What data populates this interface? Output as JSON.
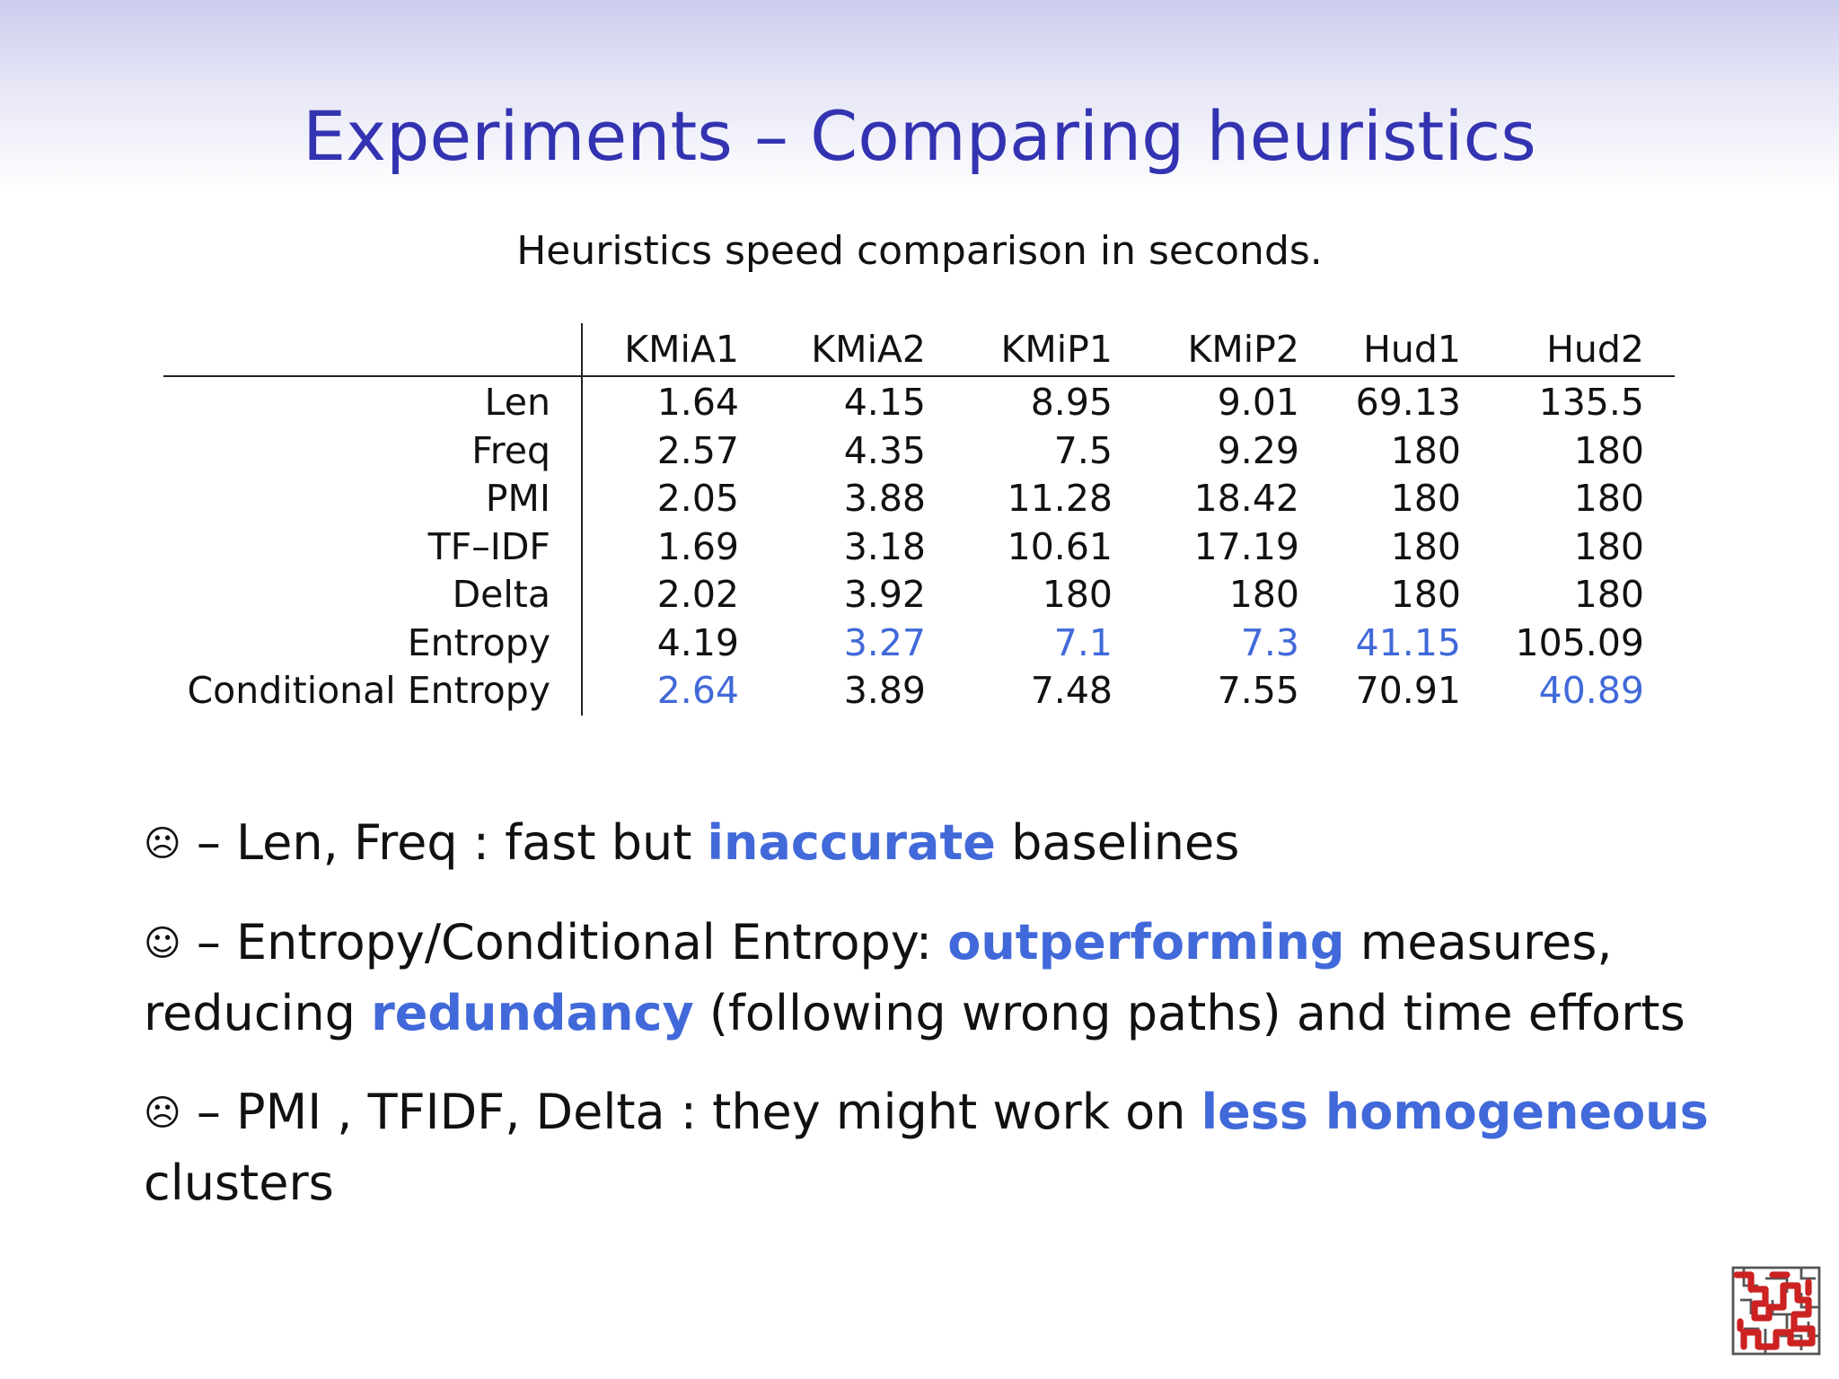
{
  "slide": {
    "title": "Experiments – Comparing heuristics",
    "caption": "Heuristics speed comparison in seconds."
  },
  "table": {
    "columns": [
      "KMiA1",
      "KMiA2",
      "KMiP1",
      "KMiP2",
      "Hud1",
      "Hud2"
    ],
    "rows": [
      {
        "label": "Len",
        "values": [
          "1.64",
          "4.15",
          "8.95",
          "9.01",
          "69.13",
          "135.5"
        ]
      },
      {
        "label": "Freq",
        "values": [
          "2.57",
          "4.35",
          "7.5",
          "9.29",
          "180",
          "180"
        ]
      },
      {
        "label": "PMI",
        "values": [
          "2.05",
          "3.88",
          "11.28",
          "18.42",
          "180",
          "180"
        ]
      },
      {
        "label": "TF–IDF",
        "values": [
          "1.69",
          "3.18",
          "10.61",
          "17.19",
          "180",
          "180"
        ]
      },
      {
        "label": "Delta",
        "values": [
          "2.02",
          "3.92",
          "180",
          "180",
          "180",
          "180"
        ]
      },
      {
        "label": "Entropy",
        "values": [
          "4.19",
          "3.27",
          "7.1",
          "7.3",
          "41.15",
          "105.09"
        ]
      },
      {
        "label": "Conditional Entropy",
        "values": [
          "2.64",
          "3.89",
          "7.48",
          "7.55",
          "70.91",
          "40.89"
        ]
      }
    ],
    "highlight_color": "#4169d9"
  },
  "bullets": [
    {
      "face": "☹",
      "parts": [
        {
          "text": " – Len, Freq : fast but ",
          "emph": false
        },
        {
          "text": "inaccurate",
          "emph": true
        },
        {
          "text": " baselines",
          "emph": false
        }
      ]
    },
    {
      "face": "☺",
      "parts": [
        {
          "text": " – Entropy/Conditional Entropy: ",
          "emph": false
        },
        {
          "text": "outperforming",
          "emph": true
        },
        {
          "text": " measures, reducing ",
          "emph": false
        },
        {
          "text": "redundancy",
          "emph": true
        },
        {
          "text": " (following wrong paths) and time efforts",
          "emph": false
        }
      ]
    },
    {
      "face": "☹",
      "parts": [
        {
          "text": " – PMI , TFIDF, Delta : they might work on ",
          "emph": false
        },
        {
          "text": "less homogeneous",
          "emph": true
        },
        {
          "text": " clusters",
          "emph": false
        }
      ]
    }
  ],
  "colors": {
    "title": "#3333b2",
    "emphasis": "#4169d9",
    "logo": "#cc2222"
  },
  "icons": {
    "logo": "maze-logo-icon"
  }
}
